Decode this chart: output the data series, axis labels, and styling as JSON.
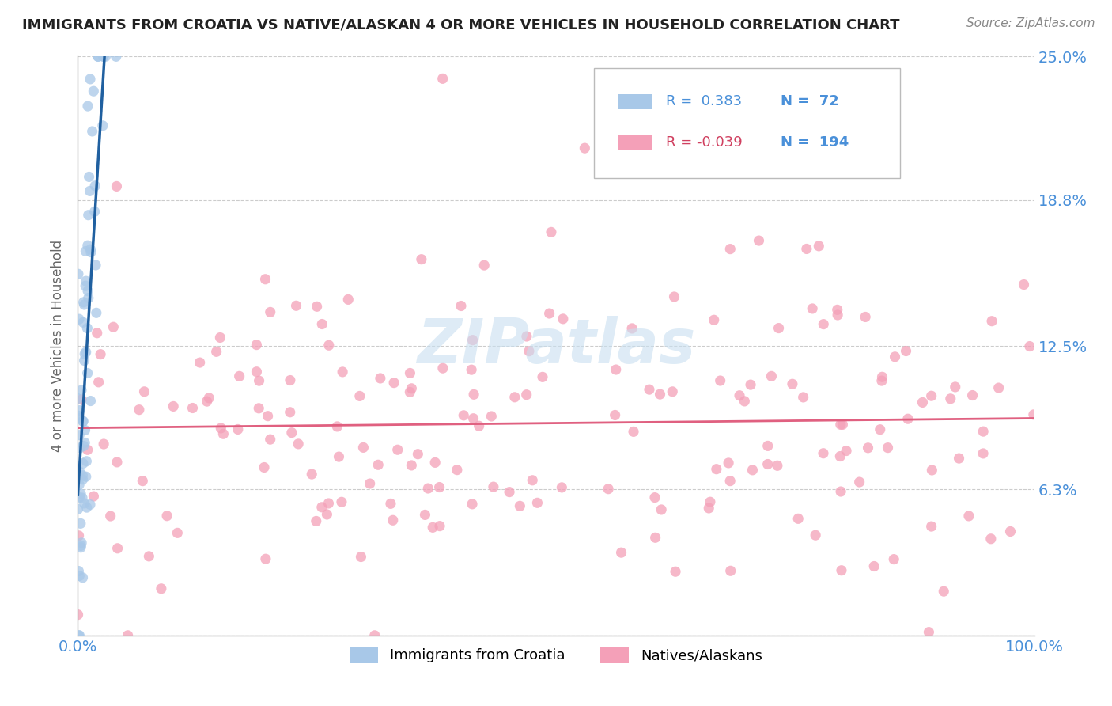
{
  "title": "IMMIGRANTS FROM CROATIA VS NATIVE/ALASKAN 4 OR MORE VEHICLES IN HOUSEHOLD CORRELATION CHART",
  "source": "Source: ZipAtlas.com",
  "ylabel": "4 or more Vehicles in Household",
  "xlim": [
    0.0,
    1.0
  ],
  "ylim": [
    0.0,
    0.25
  ],
  "ytick_vals": [
    0.0,
    0.063,
    0.125,
    0.188,
    0.25
  ],
  "ytick_labels": [
    "",
    "6.3%",
    "12.5%",
    "18.8%",
    "25.0%"
  ],
  "r_blue": 0.383,
  "n_blue": 72,
  "r_pink": -0.039,
  "n_pink": 194,
  "blue_dot_color": "#a8c8e8",
  "pink_dot_color": "#f4a0b8",
  "blue_line_solid_color": "#2060a0",
  "blue_line_dash_color": "#80aad0",
  "pink_line_color": "#e06080",
  "watermark_color": "#c8dff0",
  "background_color": "#ffffff",
  "grid_color": "#cccccc",
  "title_color": "#222222",
  "axis_label_color": "#666666",
  "tick_label_color": "#4a90d9",
  "legend_r_color_blue": "#4a90d9",
  "legend_r_color_pink": "#d04060",
  "legend_n_color": "#4a90d9",
  "source_color": "#888888"
}
